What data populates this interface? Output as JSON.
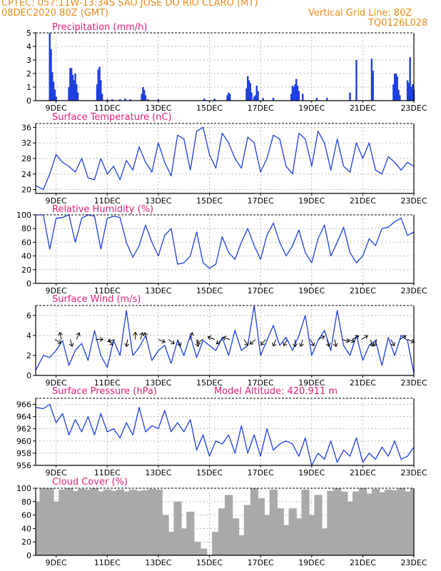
{
  "header": {
    "line1": "CPTEC:   057:11W-13:34S   SAO JOSE DO RIO CLARO (MT)",
    "line2": "08DEC2020 80Z (GMT)",
    "grid_note": "Vertical Grid Line: 80Z",
    "code": "TQ0126L028"
  },
  "colors": {
    "header": "#e88a1a",
    "title": "#e0207a",
    "series": "#1f3fe0",
    "grid": "#b9b9b9",
    "cloud": "#a9a9a9"
  },
  "x_axis": {
    "start_day": 8.2,
    "end_day": 23.0,
    "ticks": [
      {
        "day": 9,
        "label": "9DEC"
      },
      {
        "day": 11,
        "label": "11DEC"
      },
      {
        "day": 13,
        "label": "13DEC"
      },
      {
        "day": 15,
        "label": "15DEC"
      },
      {
        "day": 17,
        "label": "17DEC"
      },
      {
        "day": 19,
        "label": "19DEC"
      },
      {
        "day": 21,
        "label": "21DEC"
      },
      {
        "day": 23,
        "label": "23DEC"
      }
    ]
  },
  "chart_data": [
    {
      "type": "bar",
      "title": "Precipitation (mm/h)",
      "ylim": [
        0,
        5
      ],
      "yticks": [
        0,
        1,
        2,
        3,
        4,
        5
      ],
      "x": [
        8.75,
        8.8,
        8.85,
        8.9,
        8.95,
        9.0,
        9.5,
        9.55,
        9.6,
        9.65,
        9.7,
        9.75,
        9.8,
        9.85,
        10.6,
        10.65,
        10.7,
        10.75,
        10.8,
        11.0,
        11.2,
        11.5,
        11.7,
        11.9,
        12.35,
        12.4,
        12.45,
        12.5,
        12.6,
        13.0,
        14.8,
        15.2,
        15.7,
        15.75,
        15.8,
        16.45,
        16.5,
        16.55,
        16.6,
        16.65,
        16.75,
        16.8,
        16.85,
        16.9,
        17.1,
        17.5,
        18.2,
        18.25,
        18.3,
        18.35,
        18.4,
        18.45,
        18.5,
        18.65,
        19.2,
        19.6,
        20.5,
        20.75,
        21.35,
        21.4,
        22.2,
        22.25,
        22.3,
        22.35,
        22.4,
        22.45,
        22.75,
        22.8,
        22.85,
        22.9,
        22.95,
        23.0
      ],
      "values": [
        5.0,
        3.8,
        2.1,
        1.4,
        0.8,
        0.3,
        1.0,
        2.4,
        2.4,
        1.9,
        1.5,
        2.0,
        1.2,
        0.6,
        1.2,
        2.3,
        2.5,
        1.5,
        0.5,
        0.1,
        0.1,
        0.1,
        0.15,
        0.1,
        0.5,
        1.0,
        0.8,
        0.4,
        0.1,
        0.1,
        0.15,
        0.15,
        0.4,
        0.6,
        0.5,
        0.9,
        1.8,
        1.5,
        1.3,
        0.6,
        0.3,
        0.4,
        1.1,
        0.7,
        0.2,
        0.2,
        0.5,
        1.1,
        1.0,
        1.2,
        1.6,
        1.1,
        0.7,
        0.5,
        0.2,
        0.2,
        0.6,
        3.0,
        3.1,
        2.2,
        1.2,
        2.0,
        2.0,
        1.8,
        0.8,
        0.4,
        1.5,
        1.3,
        3.2,
        1.0,
        1.2,
        0.8
      ]
    },
    {
      "type": "line",
      "title": "Surface Temperature (nC)",
      "ylim": [
        19,
        37
      ],
      "yticks": [
        20,
        24,
        28,
        32,
        36
      ],
      "x": [
        8.2,
        8.5,
        8.75,
        9.0,
        9.25,
        9.5,
        9.75,
        10.0,
        10.25,
        10.5,
        10.75,
        11.0,
        11.25,
        11.5,
        11.75,
        12.0,
        12.25,
        12.5,
        12.75,
        13.0,
        13.25,
        13.5,
        13.75,
        14.0,
        14.25,
        14.5,
        14.75,
        15.0,
        15.25,
        15.5,
        15.75,
        16.0,
        16.25,
        16.5,
        16.75,
        17.0,
        17.25,
        17.5,
        17.75,
        18.0,
        18.25,
        18.5,
        18.75,
        19.0,
        19.25,
        19.5,
        19.75,
        20.0,
        20.25,
        20.5,
        20.75,
        21.0,
        21.25,
        21.5,
        21.75,
        22.0,
        22.25,
        22.5,
        22.75,
        23.0
      ],
      "values": [
        21,
        20,
        24,
        29,
        27,
        26,
        24.5,
        28,
        23,
        22.5,
        28,
        24,
        26,
        22.5,
        27.5,
        25,
        31,
        27,
        24.5,
        32,
        27,
        23.5,
        34,
        33,
        25,
        35,
        36,
        29,
        25.5,
        34.5,
        32,
        28,
        25.5,
        33.5,
        32,
        24.5,
        28,
        34,
        33,
        26,
        24,
        34.5,
        33,
        26,
        35,
        32,
        25,
        33,
        26,
        24.5,
        32,
        28,
        32,
        25,
        24,
        28.5,
        27,
        25,
        27,
        26
      ]
    },
    {
      "type": "line",
      "title": "Relative Humidity (%)",
      "ylim": [
        0,
        100
      ],
      "yticks": [
        0,
        20,
        40,
        60,
        80,
        100
      ],
      "x": [
        8.2,
        8.5,
        8.75,
        9.0,
        9.25,
        9.5,
        9.75,
        10.0,
        10.25,
        10.5,
        10.75,
        11.0,
        11.25,
        11.5,
        11.75,
        12.0,
        12.25,
        12.5,
        12.75,
        13.0,
        13.25,
        13.5,
        13.75,
        14.0,
        14.25,
        14.5,
        14.75,
        15.0,
        15.25,
        15.5,
        15.75,
        16.0,
        16.25,
        16.5,
        16.75,
        17.0,
        17.25,
        17.5,
        17.75,
        18.0,
        18.25,
        18.5,
        18.75,
        19.0,
        19.25,
        19.5,
        19.75,
        20.0,
        20.25,
        20.5,
        20.75,
        21.0,
        21.25,
        21.5,
        21.75,
        22.0,
        22.25,
        22.5,
        22.75,
        23.0
      ],
      "values": [
        100,
        100,
        50,
        95,
        96,
        100,
        60,
        95,
        100,
        98,
        50,
        95,
        98,
        96,
        60,
        38,
        55,
        85,
        60,
        40,
        70,
        80,
        28,
        30,
        40,
        75,
        30,
        22,
        28,
        68,
        45,
        35,
        60,
        80,
        55,
        35,
        70,
        88,
        60,
        40,
        55,
        78,
        45,
        30,
        65,
        85,
        40,
        60,
        82,
        45,
        30,
        40,
        65,
        55,
        80,
        82,
        90,
        95,
        70,
        75
      ]
    },
    {
      "type": "line",
      "title": "Surface Wind (m/s)",
      "ylim": [
        0,
        7
      ],
      "yticks": [
        0,
        2,
        4,
        6
      ],
      "x": [
        8.2,
        8.5,
        8.75,
        9.0,
        9.25,
        9.5,
        9.75,
        10.0,
        10.25,
        10.5,
        10.75,
        11.0,
        11.25,
        11.5,
        11.75,
        12.0,
        12.25,
        12.5,
        12.75,
        13.0,
        13.25,
        13.5,
        13.75,
        14.0,
        14.25,
        14.5,
        14.75,
        15.0,
        15.25,
        15.5,
        15.75,
        16.0,
        16.25,
        16.5,
        16.75,
        17.0,
        17.25,
        17.5,
        17.75,
        18.0,
        18.25,
        18.5,
        18.75,
        19.0,
        19.25,
        19.5,
        19.75,
        20.0,
        20.25,
        20.5,
        20.75,
        21.0,
        21.25,
        21.5,
        21.75,
        22.0,
        22.25,
        22.5,
        22.75,
        23.0
      ],
      "values": [
        0.5,
        2.0,
        1.8,
        2.5,
        3.5,
        1.0,
        2.5,
        3.2,
        1.5,
        4.5,
        2.0,
        0.8,
        3.5,
        2.0,
        6.5,
        2.0,
        2.8,
        4.0,
        1.5,
        2.5,
        3.0,
        1.2,
        3.5,
        2.0,
        4.0,
        1.8,
        3.5,
        3.0,
        2.5,
        3.8,
        2.0,
        4.5,
        2.5,
        3.0,
        7.0,
        2.0,
        3.5,
        5.0,
        3.0,
        3.8,
        2.5,
        4.0,
        6.0,
        2.0,
        3.5,
        4.5,
        2.5,
        6.5,
        3.0,
        2.0,
        4.0,
        1.5,
        3.0,
        3.5,
        1.0,
        3.8,
        2.0,
        4.0,
        3.5,
        0.2
      ],
      "arrows": [
        {
          "day": 8.95,
          "dx": 1,
          "dy": 0.6
        },
        {
          "day": 9.2,
          "dx": -0.2,
          "dy": -1
        },
        {
          "day": 9.55,
          "dx": 0.3,
          "dy": 1
        },
        {
          "day": 9.8,
          "dx": 0.4,
          "dy": -1
        },
        {
          "day": 10.55,
          "dx": 1,
          "dy": 0
        },
        {
          "day": 11.05,
          "dx": 0.6,
          "dy": 0.8
        },
        {
          "day": 11.3,
          "dx": -1,
          "dy": 0.3
        },
        {
          "day": 11.8,
          "dx": -0.2,
          "dy": 1
        },
        {
          "day": 12.1,
          "dx": 0,
          "dy": -1
        },
        {
          "day": 12.3,
          "dx": 0.3,
          "dy": -1
        },
        {
          "day": 12.55,
          "dx": -0.3,
          "dy": -1
        },
        {
          "day": 13.0,
          "dx": 1,
          "dy": 0.4
        },
        {
          "day": 13.4,
          "dx": 0.8,
          "dy": 0.6
        },
        {
          "day": 13.75,
          "dx": 0.4,
          "dy": 0.9
        },
        {
          "day": 14.25,
          "dx": 0.3,
          "dy": -1
        },
        {
          "day": 14.5,
          "dx": 0.2,
          "dy": 0.9
        },
        {
          "day": 14.75,
          "dx": -1,
          "dy": 0.6
        },
        {
          "day": 15.2,
          "dx": -1,
          "dy": -0.4
        },
        {
          "day": 15.5,
          "dx": -0.8,
          "dy": 0.6
        },
        {
          "day": 15.8,
          "dx": -1,
          "dy": -0.3
        },
        {
          "day": 16.35,
          "dx": 0.6,
          "dy": 0.9
        },
        {
          "day": 16.8,
          "dx": -0.8,
          "dy": 0.7
        },
        {
          "day": 17.2,
          "dx": -0.8,
          "dy": 0.9
        },
        {
          "day": 17.6,
          "dx": -0.4,
          "dy": 1
        },
        {
          "day": 18.05,
          "dx": -0.6,
          "dy": 1
        },
        {
          "day": 18.35,
          "dx": 0,
          "dy": 1
        },
        {
          "day": 18.65,
          "dx": -0.3,
          "dy": 1
        },
        {
          "day": 18.95,
          "dx": 0.5,
          "dy": 0.9
        },
        {
          "day": 19.25,
          "dx": 0.8,
          "dy": -0.4
        },
        {
          "day": 19.6,
          "dx": 0.3,
          "dy": 1
        },
        {
          "day": 19.9,
          "dx": 0.2,
          "dy": 1
        },
        {
          "day": 20.2,
          "dx": 1,
          "dy": 0.3
        },
        {
          "day": 20.4,
          "dx": 1,
          "dy": 0.3
        },
        {
          "day": 20.6,
          "dx": 1,
          "dy": -0.6
        },
        {
          "day": 20.95,
          "dx": 0.8,
          "dy": -0.5
        },
        {
          "day": 21.3,
          "dx": 0.3,
          "dy": 1
        },
        {
          "day": 21.55,
          "dx": -0.4,
          "dy": 0.9
        },
        {
          "day": 22.1,
          "dx": 0.5,
          "dy": 0.9
        },
        {
          "day": 22.45,
          "dx": 0.8,
          "dy": -0.5
        },
        {
          "day": 22.75,
          "dx": 1,
          "dy": 0.4
        }
      ]
    },
    {
      "type": "line",
      "title": "Surface Pressure (hPa)",
      "annotation": "Model Altitude: 420.911  m",
      "ylim": [
        956,
        967
      ],
      "yticks": [
        956,
        958,
        960,
        962,
        964,
        966
      ],
      "x": [
        8.2,
        8.5,
        8.75,
        9.0,
        9.25,
        9.5,
        9.75,
        10.0,
        10.25,
        10.5,
        10.75,
        11.0,
        11.25,
        11.5,
        11.75,
        12.0,
        12.25,
        12.5,
        12.75,
        13.0,
        13.25,
        13.5,
        13.75,
        14.0,
        14.25,
        14.5,
        14.75,
        15.0,
        15.25,
        15.5,
        15.75,
        16.0,
        16.25,
        16.5,
        16.75,
        17.0,
        17.25,
        17.5,
        17.75,
        18.0,
        18.25,
        18.5,
        18.75,
        19.0,
        19.25,
        19.5,
        19.75,
        20.0,
        20.25,
        20.5,
        20.75,
        21.0,
        21.25,
        21.5,
        21.75,
        22.0,
        22.25,
        22.5,
        22.75,
        23.0
      ],
      "values": [
        965.5,
        965.3,
        966.0,
        963.0,
        964.5,
        961.0,
        963.5,
        961.5,
        964.0,
        961.0,
        964.5,
        961.5,
        962.0,
        960.5,
        963.0,
        961.0,
        965.5,
        961.5,
        962.5,
        962.0,
        965.0,
        961.5,
        963.0,
        961.5,
        963.5,
        958.5,
        961.0,
        957.5,
        960.0,
        959.5,
        961.0,
        958.0,
        962.5,
        958.0,
        961.0,
        957.5,
        962.0,
        958.5,
        959.5,
        960.0,
        959.5,
        957.5,
        960.5,
        956.0,
        958.0,
        957.0,
        960.0,
        956.5,
        958.5,
        957.5,
        960.5,
        956.5,
        958.0,
        957.0,
        959.0,
        957.5,
        960.0,
        957.0,
        957.5,
        959.0
      ]
    },
    {
      "type": "area",
      "title": "Cloud Cover (%)",
      "ylim": [
        0,
        100
      ],
      "yticks": [
        0,
        20,
        40,
        60,
        80,
        100
      ],
      "x": [
        8.2,
        8.5,
        8.75,
        9.0,
        9.25,
        9.5,
        9.75,
        10.0,
        10.25,
        10.5,
        10.75,
        11.0,
        11.25,
        11.5,
        11.75,
        12.0,
        12.25,
        12.5,
        12.75,
        13.0,
        13.25,
        13.5,
        13.75,
        14.0,
        14.25,
        14.5,
        14.75,
        15.0,
        15.25,
        15.5,
        15.75,
        16.0,
        16.25,
        16.5,
        16.75,
        17.0,
        17.25,
        17.5,
        17.75,
        18.0,
        18.25,
        18.5,
        18.75,
        19.0,
        19.25,
        19.5,
        19.75,
        20.0,
        20.25,
        20.5,
        20.75,
        21.0,
        21.25,
        21.5,
        21.75,
        22.0,
        22.25,
        22.5,
        22.75,
        23.0
      ],
      "values": [
        80,
        100,
        100,
        80,
        98,
        100,
        96,
        99,
        98,
        100,
        95,
        98,
        96,
        98,
        95,
        98,
        96,
        97,
        99,
        98,
        60,
        35,
        80,
        40,
        65,
        20,
        10,
        0,
        35,
        70,
        90,
        55,
        30,
        75,
        100,
        85,
        60,
        98,
        70,
        45,
        70,
        55,
        98,
        60,
        90,
        40,
        96,
        100,
        95,
        80,
        95,
        100,
        92,
        99,
        94,
        98,
        97,
        100,
        95,
        100
      ]
    }
  ]
}
